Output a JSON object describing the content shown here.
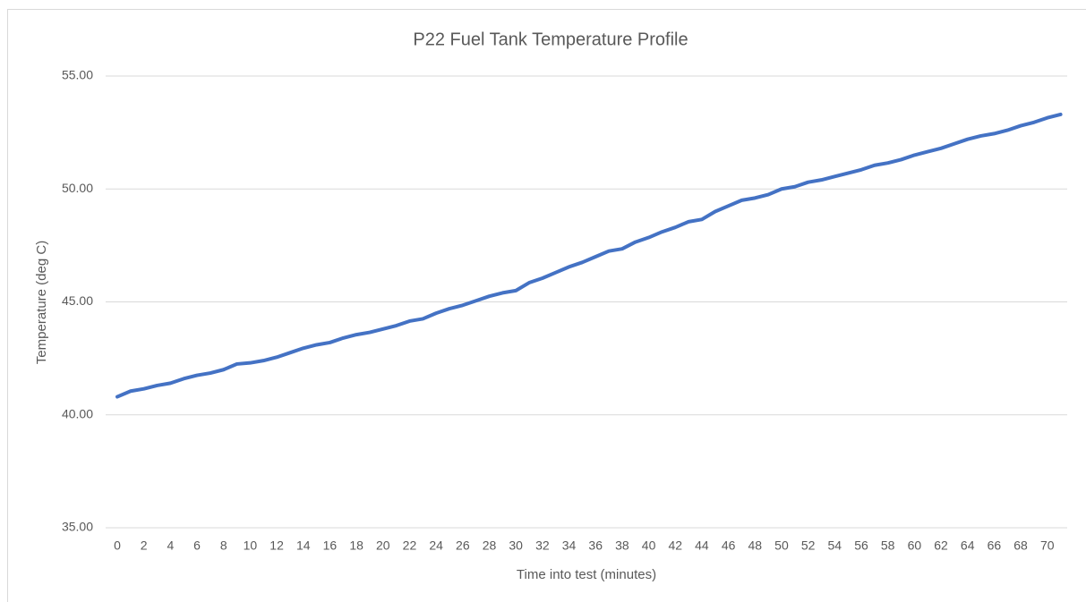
{
  "chart_data": {
    "type": "line",
    "title": "P22 Fuel Tank Temperature Profile",
    "x_label": "Time into test (minutes)",
    "y_label": "Temperature (deg C)",
    "categories": [
      0,
      null,
      2,
      null,
      4,
      null,
      6,
      null,
      8,
      null,
      10,
      null,
      12,
      null,
      14,
      null,
      16,
      null,
      18,
      null,
      20,
      null,
      22,
      null,
      24,
      null,
      26,
      null,
      28,
      null,
      30,
      null,
      32,
      null,
      34,
      null,
      36,
      null,
      38,
      null,
      40,
      null,
      42,
      null,
      44,
      null,
      46,
      null,
      48,
      null,
      50,
      null,
      52,
      null,
      54,
      null,
      56,
      null,
      58,
      null,
      60,
      null,
      62,
      null,
      64,
      null,
      66,
      null,
      68,
      null,
      70,
      null
    ],
    "series": [
      {
        "name": "Temperature",
        "color": "#4472c4",
        "values": [
          40.8,
          41.05,
          41.15,
          41.3,
          41.4,
          41.6,
          41.75,
          41.85,
          42.0,
          42.25,
          42.3,
          42.4,
          42.55,
          42.75,
          42.95,
          43.1,
          43.2,
          43.4,
          43.55,
          43.65,
          43.8,
          43.95,
          44.15,
          44.25,
          44.5,
          44.7,
          44.85,
          45.05,
          45.25,
          45.4,
          45.5,
          45.85,
          46.05,
          46.3,
          46.55,
          46.75,
          47.0,
          47.25,
          47.35,
          47.65,
          47.85,
          48.1,
          48.3,
          48.55,
          48.65,
          49.0,
          49.25,
          49.5,
          49.6,
          49.75,
          50.0,
          50.1,
          50.3,
          50.4,
          50.55,
          50.7,
          50.85,
          51.05,
          51.15,
          51.3,
          51.5,
          51.65,
          51.8,
          52.0,
          52.2,
          52.35,
          52.45,
          52.6,
          52.8,
          52.95,
          53.15,
          53.3
        ]
      }
    ],
    "ylim": [
      35,
      55
    ],
    "yticks": [
      {
        "value": 35,
        "label": "35.00"
      },
      {
        "value": 40,
        "label": "40.00"
      },
      {
        "value": 45,
        "label": "45.00"
      },
      {
        "value": 50,
        "label": "50.00"
      },
      {
        "value": 55,
        "label": "55.00"
      }
    ],
    "grid": true
  }
}
